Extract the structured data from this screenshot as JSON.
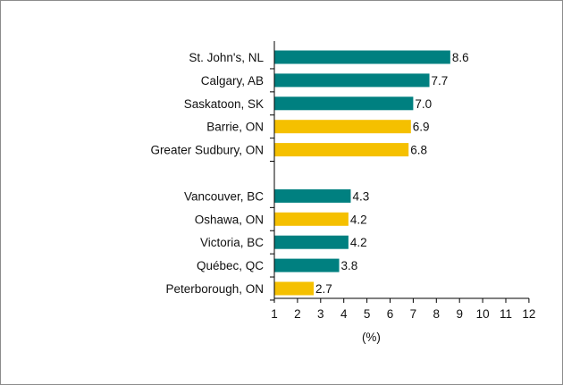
{
  "chart_data": {
    "type": "bar",
    "orientation": "horizontal",
    "title": "",
    "xlabel": "(%)",
    "ylabel": "",
    "xlim": [
      1,
      12
    ],
    "x_ticks": [
      1,
      2,
      3,
      4,
      5,
      6,
      7,
      8,
      9,
      10,
      11,
      12
    ],
    "grid": false,
    "legend": "none",
    "groups": [
      {
        "bars": [
          {
            "category": "St. John's, NL",
            "value": 8.6,
            "label": "8.6",
            "color": "#008080"
          },
          {
            "category": "Calgary, AB",
            "value": 7.7,
            "label": "7.7",
            "color": "#008080"
          },
          {
            "category": "Saskatoon, SK",
            "value": 7.0,
            "label": "7.0",
            "color": "#008080"
          },
          {
            "category": "Barrie, ON",
            "value": 6.9,
            "label": "6.9",
            "color": "#F5C000"
          },
          {
            "category": "Greater Sudbury, ON",
            "value": 6.8,
            "label": "6.8",
            "color": "#F5C000"
          }
        ]
      },
      {
        "bars": [
          {
            "category": "Vancouver, BC",
            "value": 4.3,
            "label": "4.3",
            "color": "#008080"
          },
          {
            "category": "Oshawa, ON",
            "value": 4.2,
            "label": "4.2",
            "color": "#F5C000"
          },
          {
            "category": "Victoria, BC",
            "value": 4.2,
            "label": "4.2",
            "color": "#008080"
          },
          {
            "category": "Québec, QC",
            "value": 3.8,
            "label": "3.8",
            "color": "#008080"
          },
          {
            "category": "Peterborough, ON",
            "value": 2.7,
            "label": "2.7",
            "color": "#F5C000"
          }
        ]
      }
    ]
  }
}
